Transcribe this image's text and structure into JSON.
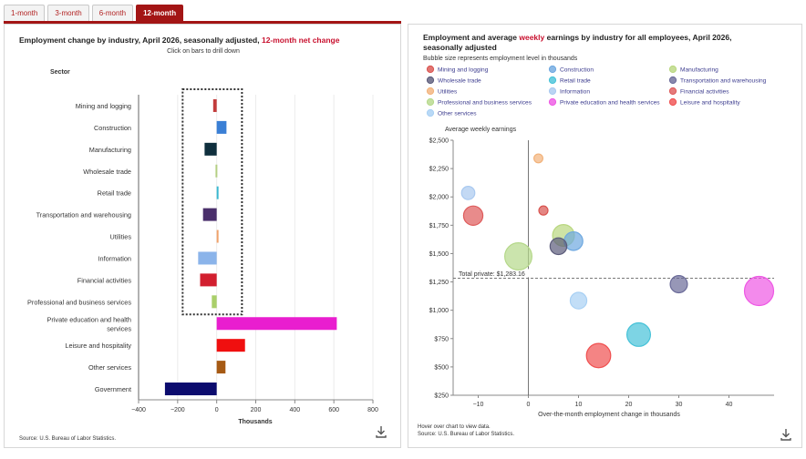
{
  "tabs": [
    {
      "label": "1-month",
      "active": false
    },
    {
      "label": "3-month",
      "active": false
    },
    {
      "label": "6-month",
      "active": false
    },
    {
      "label": "12-month",
      "active": true
    }
  ],
  "left": {
    "title_main": "Employment change by industry, April 2026, seasonally adjusted,",
    "title_highlight": "12-month net change",
    "subtitle": "Click on bars to drill down",
    "sector_header": "Sector",
    "xlabel": "Thousands",
    "source": "Source: U.S. Bureau of Labor Statistics."
  },
  "right": {
    "title_line1_pre": "Employment and average",
    "title_line1_hl": "weekly",
    "title_line1_post": "earnings by industry for all employees, April 2026,",
    "title_line2": "seasonally adjusted",
    "subtitle": "Bubble size represents employment level in thousands",
    "ylabel": "Average weekly earnings",
    "xlabel": "Over-the-month employment change in thousands",
    "total_label": "Total private: $1,283.16",
    "hover_note": "Hover over chart to view data.",
    "source": "Source: U.S. Bureau of Labor Statistics."
  },
  "icons": {
    "download": "download-icon"
  },
  "chart_data": [
    {
      "type": "bar",
      "orientation": "horizontal",
      "title": "Employment change by industry, April 2026, seasonally adjusted, 12-month net change",
      "subtitle": "Click on bars to drill down",
      "xlabel": "Thousands",
      "xlim": [
        -400,
        800
      ],
      "xticks": [
        -400,
        -200,
        0,
        200,
        400,
        600,
        800
      ],
      "highlighted_group": [
        "Mining and logging",
        "Professional and business services"
      ],
      "categories": [
        "Mining and logging",
        "Construction",
        "Manufacturing",
        "Wholesale trade",
        "Retail trade",
        "Transportation and warehousing",
        "Utilities",
        "Information",
        "Financial activities",
        "Professional and business services",
        "Private education and health services",
        "Leisure and hospitality",
        "Other services",
        "Government"
      ],
      "values": [
        -18,
        50,
        -62,
        -6,
        7,
        -70,
        5,
        -95,
        -85,
        -25,
        615,
        145,
        45,
        -265
      ],
      "colors": [
        "#c23b3b",
        "#3a7fd5",
        "#0f2f3d",
        "#b5cf84",
        "#39b8d0",
        "#4a2f6b",
        "#f0a26b",
        "#8bb4ea",
        "#d21f2f",
        "#a9cf6a",
        "#e91ecf",
        "#f00f0f",
        "#a65a14",
        "#0c0c6e"
      ]
    },
    {
      "type": "scatter",
      "title": "Employment and average weekly earnings by industry for all employees, April 2026, seasonally adjusted",
      "subtitle": "Bubble size represents employment level in thousands",
      "xlabel": "Over-the-month employment change in thousands",
      "ylabel": "Average weekly earnings",
      "xlim": [
        -15,
        49
      ],
      "ylim": [
        250,
        2500
      ],
      "xticks": [
        -10,
        0,
        10,
        20,
        30,
        40
      ],
      "yticks": [
        250,
        500,
        750,
        1000,
        1250,
        1500,
        1750,
        2000,
        2250,
        2500
      ],
      "ytick_labels": [
        "$250",
        "$500",
        "$750",
        "$1,000",
        "$1,250",
        "$1,500",
        "$1,750",
        "$2,000",
        "$2,250",
        "$2,500"
      ],
      "reference_line": {
        "y": 1283.16,
        "label": "Total private: $1,283.16"
      },
      "legend_position": "top",
      "series": [
        {
          "name": "Mining and logging",
          "x": 3,
          "y": 1880,
          "size": 640,
          "color": "#d9534f"
        },
        {
          "name": "Construction",
          "x": 9,
          "y": 1610,
          "size": 8300,
          "color": "#6ea8e0"
        },
        {
          "name": "Manufacturing",
          "x": 7,
          "y": 1660,
          "size": 12700,
          "color": "#b9d77f"
        },
        {
          "name": "Wholesale trade",
          "x": 6,
          "y": 1565,
          "size": 6100,
          "color": "#5b5b7a"
        },
        {
          "name": "Retail trade",
          "x": 22,
          "y": 785,
          "size": 15700,
          "color": "#46c2d8"
        },
        {
          "name": "Transportation and warehousing",
          "x": 30,
          "y": 1230,
          "size": 6600,
          "color": "#6b6b99"
        },
        {
          "name": "Utilities",
          "x": 2,
          "y": 2340,
          "size": 560,
          "color": "#f2b27a"
        },
        {
          "name": "Information",
          "x": -12,
          "y": 2035,
          "size": 2900,
          "color": "#a9c9f0"
        },
        {
          "name": "Financial activities",
          "x": -11,
          "y": 1835,
          "size": 9200,
          "color": "#de5a5a"
        },
        {
          "name": "Professional and business services",
          "x": -2,
          "y": 1475,
          "size": 22600,
          "color": "#b5d88a"
        },
        {
          "name": "Private education and health services",
          "x": 46,
          "y": 1170,
          "size": 27000,
          "color": "#ee58e4"
        },
        {
          "name": "Leisure and hospitality",
          "x": 14,
          "y": 600,
          "size": 16900,
          "color": "#f05050"
        },
        {
          "name": "Other services",
          "x": 10,
          "y": 1085,
          "size": 5900,
          "color": "#a8d0f4"
        }
      ]
    }
  ]
}
